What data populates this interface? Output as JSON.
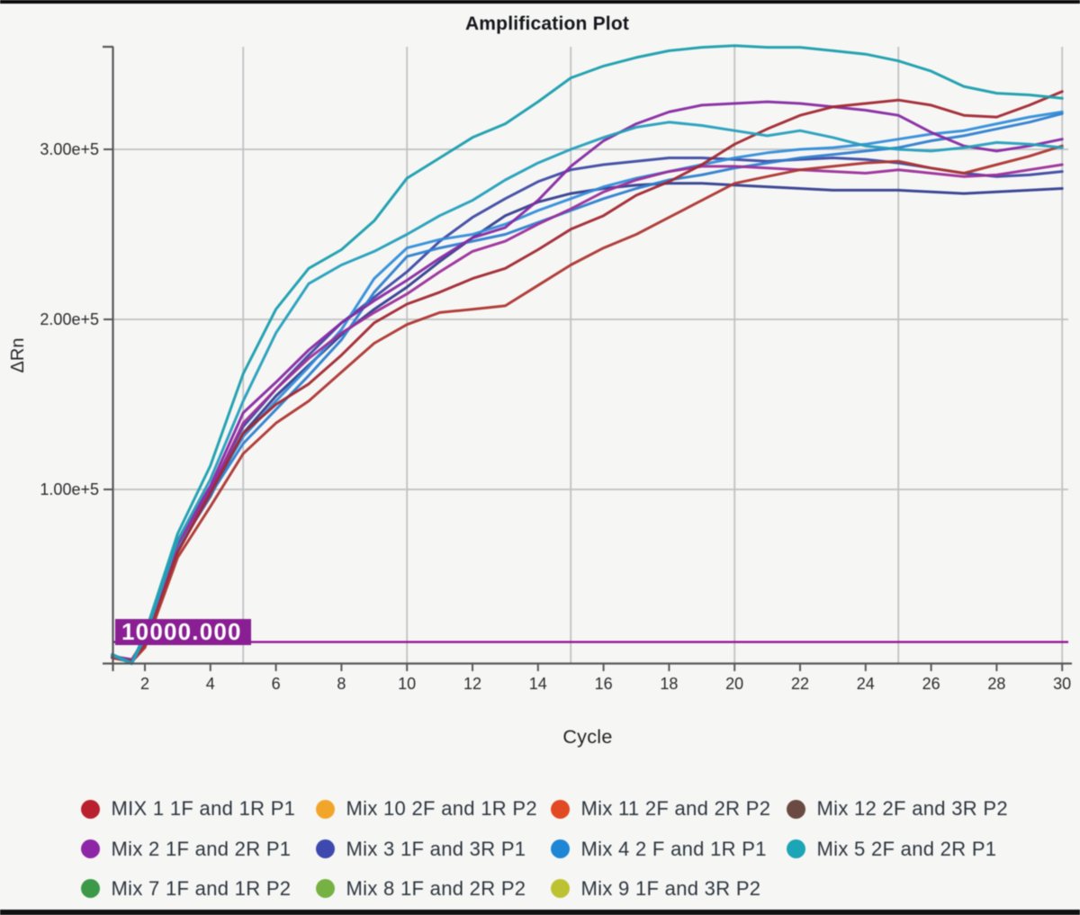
{
  "frame": {
    "top_bar_color": "#0c0c0c",
    "bottom_bar_color": "#111111",
    "background_color": "#f6f7f4"
  },
  "chart_data": {
    "type": "line",
    "title": "Amplification Plot",
    "xlabel": "Cycle",
    "ylabel": "ΔRn",
    "x_ticks": [
      2,
      4,
      6,
      8,
      10,
      12,
      14,
      16,
      18,
      20,
      22,
      24,
      26,
      28,
      30
    ],
    "y_ticks": [
      {
        "value": 100000,
        "label": "1.00e+5"
      },
      {
        "value": 200000,
        "label": "2.00e+5"
      },
      {
        "value": 300000,
        "label": "3.00e+5"
      }
    ],
    "xlim": [
      1,
      30
    ],
    "ylim": [
      -5000,
      360000
    ],
    "x_gridlines": [
      5,
      10,
      15,
      20,
      25,
      30
    ],
    "grid": true,
    "legend_position": "bottom",
    "threshold": {
      "value": 10000,
      "label": "10000.000",
      "line_color": "#99119c",
      "box_color": "#8d1d98",
      "text_color": "#ffffff"
    },
    "x": [
      1,
      1.6,
      2,
      3,
      4,
      5,
      6,
      7,
      8,
      9,
      10,
      11,
      12,
      13,
      14,
      15,
      16,
      17,
      18,
      19,
      20,
      21,
      22,
      23,
      24,
      25,
      26,
      27,
      28,
      29,
      30
    ],
    "series": [
      {
        "label": "MIX 1 1F and 1R P1",
        "color": "#c01f2d",
        "curve_colors": [
          "#a72631",
          "#b23430"
        ],
        "replicates": [
          [
            1000,
            -1000,
            8000,
            63000,
            98000,
            133000,
            150000,
            162000,
            179000,
            198000,
            209000,
            216000,
            224000,
            230000,
            241000,
            253000,
            261000,
            273000,
            281000,
            291000,
            303000,
            312000,
            320000,
            325000,
            327000,
            329000,
            326000,
            320000,
            319000,
            326000,
            334000
          ],
          [
            1000,
            -1500,
            7000,
            60000,
            90000,
            121000,
            139000,
            152000,
            169000,
            186000,
            197000,
            204000,
            206000,
            208000,
            220000,
            232000,
            242000,
            250000,
            260000,
            270000,
            280000,
            284000,
            288000,
            290000,
            292000,
            293000,
            289000,
            286000,
            291000,
            296000,
            302000
          ]
        ]
      },
      {
        "label": "Mix 10 2F and 1R P2",
        "color": "#f5a623",
        "curve_colors": [],
        "replicates": []
      },
      {
        "label": "Mix 11 2F and 2R P2",
        "color": "#e8481f",
        "curve_colors": [],
        "replicates": []
      },
      {
        "label": "Mix 12 2F and 3R P2",
        "color": "#6b4a42",
        "curve_colors": [],
        "replicates": []
      },
      {
        "label": "Mix 2 1F and 2R P1",
        "color": "#9125ab",
        "curve_colors": [
          "#8a28a8",
          "#a02d9e"
        ],
        "replicates": [
          [
            2000,
            0,
            12000,
            70000,
            102000,
            145000,
            163000,
            182000,
            198000,
            211000,
            223000,
            236000,
            248000,
            254000,
            270000,
            290000,
            305000,
            315000,
            322000,
            326000,
            327000,
            328000,
            327000,
            325000,
            323000,
            320000,
            310000,
            302000,
            299000,
            302000,
            306000
          ],
          [
            2000,
            -500,
            11000,
            68000,
            99000,
            139000,
            159000,
            177000,
            192000,
            204000,
            215000,
            228000,
            240000,
            246000,
            256000,
            265000,
            275000,
            282000,
            287000,
            290000,
            290000,
            289000,
            288000,
            287000,
            286000,
            288000,
            286000,
            284000,
            285000,
            288000,
            291000
          ]
        ]
      },
      {
        "label": "Mix 3 1F and 3R P1",
        "color": "#3c49b4",
        "curve_colors": [
          "#3d4aa9",
          "#333e94"
        ],
        "replicates": [
          [
            2000,
            -500,
            11000,
            67000,
            100000,
            137000,
            159000,
            179000,
            198000,
            213000,
            228000,
            246000,
            260000,
            271000,
            281000,
            288000,
            291000,
            293000,
            295000,
            295000,
            294000,
            293000,
            294000,
            295000,
            294000,
            292000,
            289000,
            286000,
            284000,
            285000,
            287000
          ],
          [
            2000,
            -1000,
            10000,
            65000,
            96000,
            133000,
            155000,
            173000,
            191000,
            206000,
            219000,
            234000,
            248000,
            261000,
            269000,
            274000,
            277000,
            279000,
            280000,
            280000,
            279000,
            278000,
            277000,
            276000,
            276000,
            276000,
            275000,
            274000,
            275000,
            276000,
            277000
          ]
        ]
      },
      {
        "label": "Mix 4 2 F and 1R P1",
        "color": "#1a86da",
        "curve_colors": [
          "#2e8ede",
          "#2b7fd4"
        ],
        "replicates": [
          [
            1500,
            -1000,
            10000,
            66000,
            99000,
            131000,
            152000,
            172000,
            194000,
            224000,
            242000,
            247000,
            250000,
            256000,
            264000,
            271000,
            278000,
            283000,
            287000,
            291000,
            295000,
            298000,
            300000,
            301000,
            303000,
            306000,
            309000,
            311000,
            315000,
            319000,
            322000
          ],
          [
            1500,
            -1500,
            9000,
            64000,
            97000,
            127000,
            147000,
            167000,
            188000,
            216000,
            237000,
            242000,
            246000,
            250000,
            257000,
            264000,
            271000,
            277000,
            282000,
            285000,
            289000,
            292000,
            295000,
            297000,
            299000,
            301000,
            305000,
            308000,
            312000,
            316000,
            321000
          ]
        ]
      },
      {
        "label": "Mix 5 2F and 2R P1",
        "color": "#16a6b8",
        "curve_colors": [
          "#149fb0",
          "#1fa0bf"
        ],
        "replicates": [
          [
            3000,
            -2000,
            15000,
            74000,
            114000,
            168000,
            206000,
            230000,
            241000,
            258000,
            283000,
            295000,
            307000,
            315000,
            328000,
            342000,
            349000,
            354000,
            358000,
            360000,
            361000,
            360000,
            360000,
            358000,
            356000,
            352000,
            346000,
            337000,
            333000,
            332000,
            330000
          ],
          [
            2500,
            -2500,
            13000,
            70000,
            106000,
            152000,
            192000,
            221000,
            232000,
            240000,
            250000,
            261000,
            270000,
            282000,
            292000,
            300000,
            307000,
            313000,
            316000,
            314000,
            311000,
            308000,
            311000,
            307000,
            302000,
            300000,
            299000,
            301000,
            304000,
            303000,
            301000
          ]
        ]
      },
      {
        "label": "Mix 7 1F and 1R P2",
        "color": "#389a45",
        "curve_colors": [],
        "replicates": []
      },
      {
        "label": "Mix 8 1F and 2R P2",
        "color": "#74b23e",
        "curve_colors": [],
        "replicates": []
      },
      {
        "label": "Mix 9 1F and 3R P2",
        "color": "#bdc32b",
        "curve_colors": [],
        "replicates": []
      }
    ],
    "legend_order": [
      "MIX 1 1F and 1R P1",
      "Mix 10 2F and 1R P2",
      "Mix 11 2F and 2R P2",
      "Mix 12 2F and 3R P2",
      "Mix 2 1F and 2R P1",
      "Mix 3 1F and 3R P1",
      "Mix 4 2 F and 1R P1",
      "Mix 5 2F and 2R P1",
      "Mix 7 1F and 1R P2",
      "Mix 8 1F and 2R P2",
      "Mix 9 1F and 3R P2"
    ]
  },
  "style": {
    "grid_color": "#bfc0c3",
    "axis_color": "#57575a",
    "tick_label_color": "#2a2a2e",
    "title_color": "#15151d",
    "legend_text_color": "#2c3540"
  }
}
